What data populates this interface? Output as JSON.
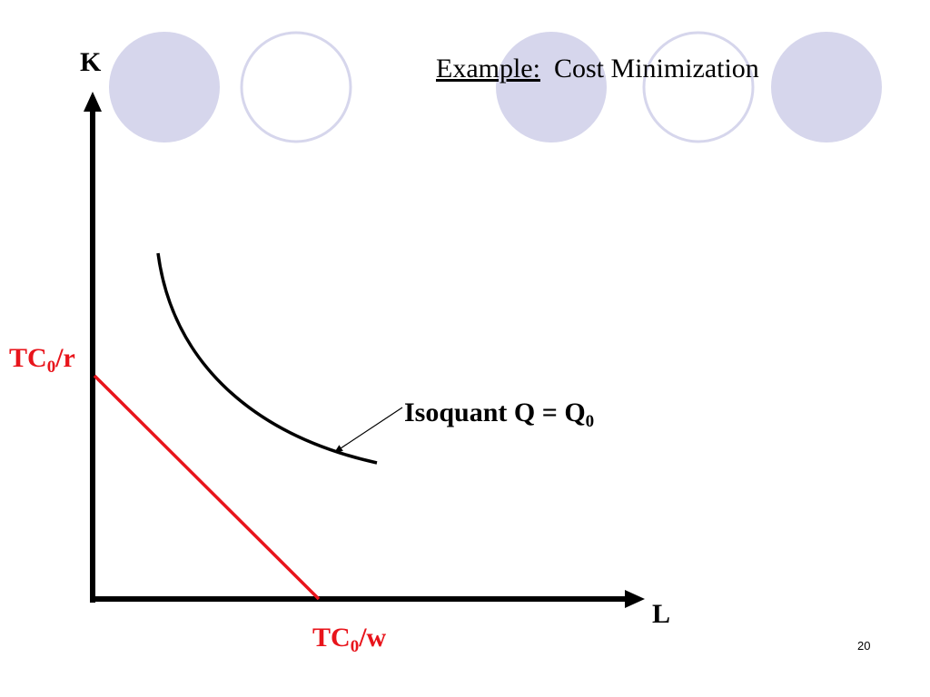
{
  "slide": {
    "title_underlined": "Example:",
    "title_rest": "Cost Minimization",
    "page_number": "20"
  },
  "diagram": {
    "y_axis_label": "K",
    "x_axis_label": "L",
    "budget_y_intercept_main": "TC",
    "budget_y_intercept_sub": "0",
    "budget_y_intercept_tail": "/r",
    "budget_x_intercept_main": "TC",
    "budget_x_intercept_sub": "0",
    "budget_x_intercept_tail": "/w",
    "isoquant_label_main": "Isoquant Q = Q",
    "isoquant_label_sub": "0"
  },
  "colors": {
    "circle_fill": "#d6d6ec",
    "circle_stroke": "#d6d6ec",
    "budget_line": "#e8141b",
    "axes": "#000000",
    "isoquant": "#000000"
  }
}
